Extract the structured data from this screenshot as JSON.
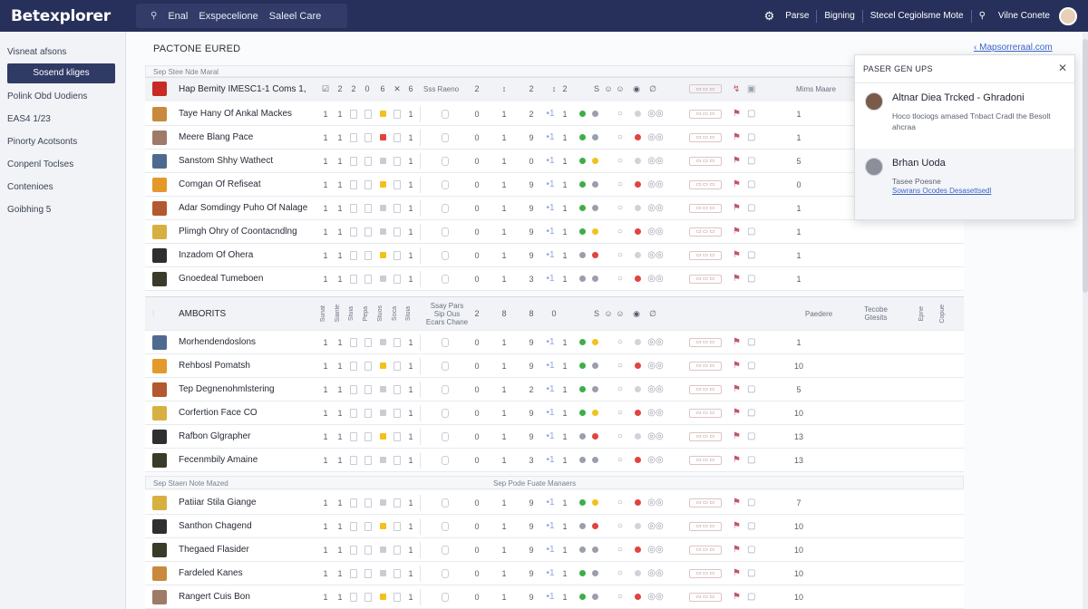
{
  "app": {
    "logo": "Betexplorer"
  },
  "topbar": {
    "search_icon": "search-icon",
    "search_items": [
      "Enal",
      "Exspecelione",
      "Saleel Care"
    ],
    "right_items": [
      "Parse",
      "Bigning",
      "Stecel Cegiolsme Mote",
      "Vilne Conete"
    ]
  },
  "sidebar": {
    "items": [
      {
        "label": "Visneat afsons"
      },
      {
        "label": "Sosend kliges"
      },
      {
        "label": "Polink Obd Uodiens"
      },
      {
        "label": "EAS4 1/23"
      },
      {
        "label": "Pinorty Acotsonts"
      },
      {
        "label": "Conpenl Toclses"
      },
      {
        "label": "Contenioes"
      },
      {
        "label": "Goibhing 5"
      }
    ]
  },
  "main": {
    "title": "PACTONE EURED",
    "top_link": "Mapsorreraal.com",
    "sections": {
      "first_bar": "Sep Stee Nde Maral",
      "head1": "Hap Bemity IMESC1-1 Coms 1,",
      "head1_mid": "Sss Raeno",
      "head1_right": "Mims Maare",
      "head2": "AMBORITS",
      "head2_mid": "Ssay Pars Sip Ous Ecars Chane",
      "head2_right1": "Paedere",
      "head2_right2": "Tecobe Gtesits",
      "bar2_left": "Sep Staen Note Mazed",
      "bar2_mid": "Sep Pode Fuate Manaers"
    },
    "rows_a": [
      {
        "name": "Taye Hany Of Ankal Mackes",
        "a": "1",
        "b": "1",
        "c": "0",
        "d": "2",
        "e": "1",
        "last": "1"
      },
      {
        "name": "Meere Blang Pace",
        "a": "1",
        "b": "1",
        "c": "0",
        "d": "9",
        "e": "1",
        "last": "1"
      },
      {
        "name": "Sanstom Shhy Wathect",
        "a": "1",
        "b": "1",
        "c": "0",
        "d": "0",
        "e": "1",
        "last": "5"
      },
      {
        "name": "Comgan Of Refiseat",
        "a": "1",
        "b": "1",
        "c": "0",
        "d": "9",
        "e": "1",
        "last": "0"
      },
      {
        "name": "Adar Somdingy Puho Of Nalage",
        "a": "1",
        "b": "1",
        "c": "0",
        "d": "9",
        "e": "1",
        "last": "1"
      },
      {
        "name": "Plimgh Ohry of Coontacndlng",
        "a": "1",
        "b": "1",
        "c": "0",
        "d": "9",
        "e": "1",
        "last": "1"
      },
      {
        "name": "Inzadom Of Ohera",
        "a": "1",
        "b": "1",
        "c": "0",
        "d": "9",
        "e": "1",
        "last": "1"
      },
      {
        "name": "Gnoedeal Tumeboen",
        "a": "1",
        "b": "1",
        "c": "0",
        "d": "3",
        "e": "1",
        "last": "1"
      }
    ],
    "rows_b": [
      {
        "name": "Morhendendoslons",
        "a": "1",
        "b": "1",
        "c": "0",
        "d": "9",
        "e": "1",
        "last": "1"
      },
      {
        "name": "Rehbosl Pomatsh",
        "a": "1",
        "b": "1",
        "c": "0",
        "d": "9",
        "e": "1",
        "last": "10"
      },
      {
        "name": "Tep Degnenohmlstering",
        "a": "1",
        "b": "1",
        "c": "0",
        "d": "2",
        "e": "1",
        "last": "5"
      },
      {
        "name": "Corfertion Face CO",
        "a": "1",
        "b": "1",
        "c": "0",
        "d": "9",
        "e": "1",
        "last": "10"
      },
      {
        "name": "Rafbon Glgrapher",
        "a": "1",
        "b": "1",
        "c": "0",
        "d": "9",
        "e": "1",
        "last": "13"
      },
      {
        "name": "Fecenmbily Amaine",
        "a": "1",
        "b": "1",
        "c": "0",
        "d": "3",
        "e": "1",
        "last": "13"
      }
    ],
    "rows_c": [
      {
        "name": "Patiiar Stila Giange",
        "a": "1",
        "b": "1",
        "c": "0",
        "d": "9",
        "e": "1",
        "last": "7"
      },
      {
        "name": "Santhon Chagend",
        "a": "1",
        "b": "1",
        "c": "0",
        "d": "9",
        "e": "1",
        "last": "10"
      },
      {
        "name": "Thegaed Flasider",
        "a": "1",
        "b": "1",
        "c": "0",
        "d": "9",
        "e": "1",
        "last": "10"
      },
      {
        "name": "Fardeled Kanes",
        "a": "1",
        "b": "1",
        "c": "0",
        "d": "9",
        "e": "1",
        "last": "10"
      },
      {
        "name": "Rangert Cuis Bon",
        "a": "1",
        "b": "1",
        "c": "0",
        "d": "9",
        "e": "1",
        "last": "10"
      }
    ]
  },
  "popup": {
    "title": "PASER GEN UPS",
    "entries": [
      {
        "name": "Altnar Diea Trcked - Ghradoni",
        "body": "Hoco tlociogs amased Tnbact Cradl the Besolt ahcraa"
      },
      {
        "name": "Brhan Uoda",
        "body": "Tasee Poesne",
        "link": "Sowrans Ocodes Desasettsedl"
      }
    ]
  },
  "colors": {
    "topbar": "#27305a",
    "accent": "#2f3a65",
    "green": "#3fae49",
    "red": "#e0443e",
    "yellow": "#f2c21b"
  }
}
